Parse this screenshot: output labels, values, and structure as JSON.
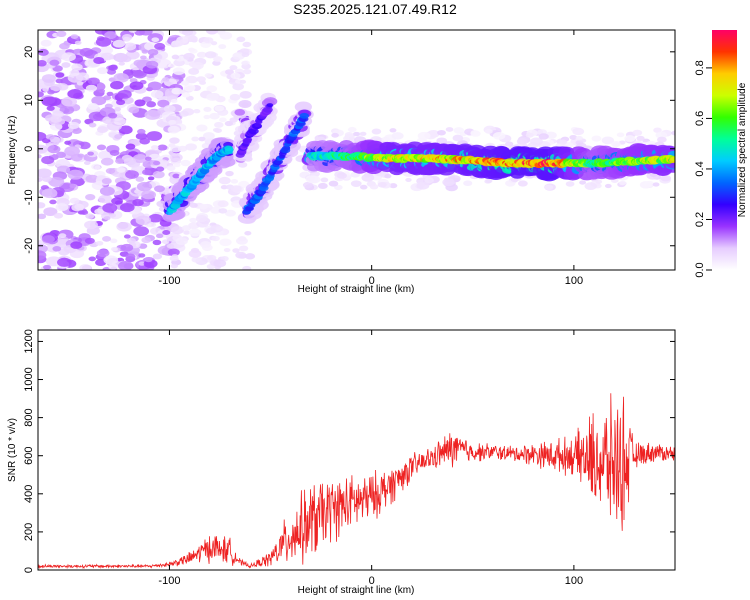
{
  "title": "S235.2025.121.07.49.R12",
  "chart_data": [
    {
      "type": "heatmap",
      "title": "S235.2025.121.07.49.R12",
      "xlabel": "Height of straight line (km)",
      "ylabel": "Frequency (Hz)",
      "xlim": [
        -165,
        150
      ],
      "ylim": [
        -25,
        24.5
      ],
      "xticks": [
        -100,
        0,
        100
      ],
      "yticks": [
        -20,
        -10,
        0,
        10,
        20
      ],
      "colorbar": {
        "label": "Normalized spectral amplitude",
        "range": [
          0,
          0.95
        ],
        "ticks": [
          0.0,
          0.2,
          0.4,
          0.6,
          0.8
        ],
        "colormap": [
          "#ffffff",
          "#e6ccff",
          "#9933ff",
          "#3300ff",
          "#0066ff",
          "#00ccff",
          "#00ff99",
          "#33ff00",
          "#ccff00",
          "#ffcc00",
          "#ff3300",
          "#ff0066"
        ]
      },
      "ridges": [
        {
          "name": "main",
          "x": [
            -100,
            -90,
            -80,
            -75,
            -70
          ],
          "y": [
            -13,
            -8,
            -3,
            -1,
            0
          ],
          "amplitude": 0.45
        },
        {
          "name": "branch-1",
          "x": [
            -62,
            -55,
            -48,
            -40,
            -33
          ],
          "y": [
            -13,
            -9,
            -4,
            2,
            7
          ],
          "amplitude": 0.35
        },
        {
          "name": "branch-2",
          "x": [
            -65,
            -60,
            -55,
            -50
          ],
          "y": [
            -1,
            3,
            6,
            9
          ],
          "amplitude": 0.25
        },
        {
          "name": "trail",
          "x": [
            -30,
            -10,
            10,
            30,
            50,
            70,
            90,
            110,
            130,
            150
          ],
          "y": [
            -1.5,
            -1.5,
            -2,
            -2,
            -2.5,
            -3,
            -3,
            -3,
            -2.5,
            -2
          ],
          "amplitude": [
            0.5,
            0.6,
            0.8,
            0.8,
            0.85,
            0.9,
            0.9,
            0.6,
            0.7,
            0.75
          ]
        }
      ]
    },
    {
      "type": "line",
      "xlabel": "Height of straight line (km)",
      "ylabel": "SNR (10 * v/v)",
      "xlim": [
        -165,
        150
      ],
      "ylim": [
        0,
        1260
      ],
      "xticks": [
        -100,
        0,
        100
      ],
      "yticks": [
        0,
        200,
        400,
        600,
        800,
        1000,
        1200
      ],
      "color": "#ee2222",
      "envelope": {
        "x": [
          -165,
          -110,
          -100,
          -90,
          -80,
          -75,
          -70,
          -65,
          -60,
          -50,
          -40,
          -30,
          -20,
          -10,
          0,
          10,
          20,
          30,
          40,
          50,
          60,
          70,
          80,
          90,
          100,
          110,
          115,
          120,
          125,
          130,
          140,
          150
        ],
        "mean": [
          20,
          20,
          30,
          60,
          120,
          110,
          100,
          40,
          20,
          60,
          180,
          250,
          320,
          350,
          380,
          450,
          540,
          590,
          640,
          620,
          620,
          610,
          610,
          600,
          600,
          580,
          560,
          560,
          560,
          600,
          620,
          610
        ],
        "amp": [
          10,
          10,
          15,
          40,
          90,
          90,
          80,
          20,
          10,
          50,
          180,
          250,
          200,
          170,
          150,
          120,
          80,
          70,
          120,
          60,
          50,
          50,
          70,
          100,
          120,
          300,
          350,
          400,
          420,
          80,
          60,
          50
        ]
      }
    }
  ]
}
